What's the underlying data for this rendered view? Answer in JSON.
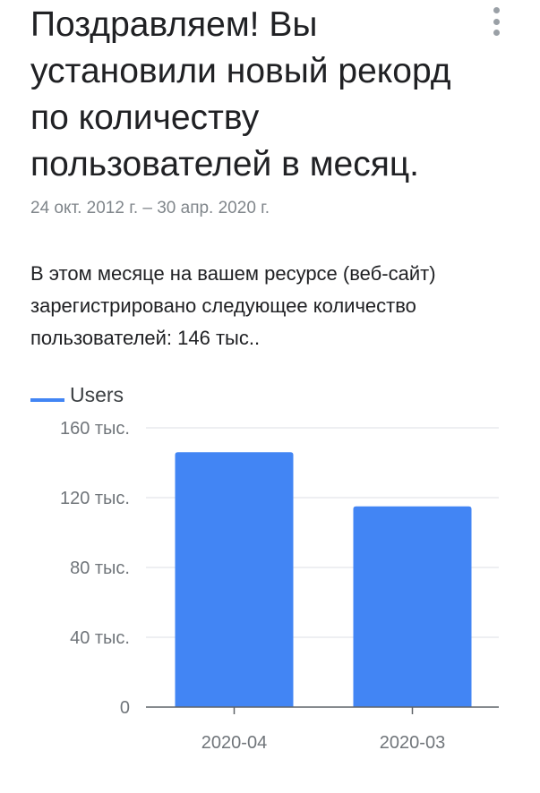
{
  "card": {
    "title_lines": [
      "Поздравляем! Вы",
      "установили новый рекорд",
      "по количеству",
      "пользователей в месяц."
    ],
    "date_range": "24 окт. 2012 г. – 30 апр. 2020 г.",
    "description_lines": [
      "В этом месяце на вашем ресурсе (веб-сайт)",
      "зарегистрировано следующее количество",
      "пользователей: 146 тыс.."
    ],
    "menu_icon": "more-vert-icon"
  },
  "colors": {
    "bar": "#4285f4",
    "grid": "#e8eaed",
    "axis": "#5f6368",
    "tick_text": "#70757a"
  },
  "chart_data": {
    "type": "bar",
    "categories": [
      "2020-04",
      "2020-03"
    ],
    "series": [
      {
        "name": "Users",
        "values": [
          146000,
          115000
        ]
      }
    ],
    "ylim": [
      0,
      160000
    ],
    "yticks": [
      0,
      40000,
      80000,
      120000,
      160000
    ],
    "ytick_labels": [
      "0",
      "40 тыс.",
      "80 тыс.",
      "120 тыс.",
      "160 тыс."
    ],
    "legend": "top-left",
    "grid": true
  }
}
